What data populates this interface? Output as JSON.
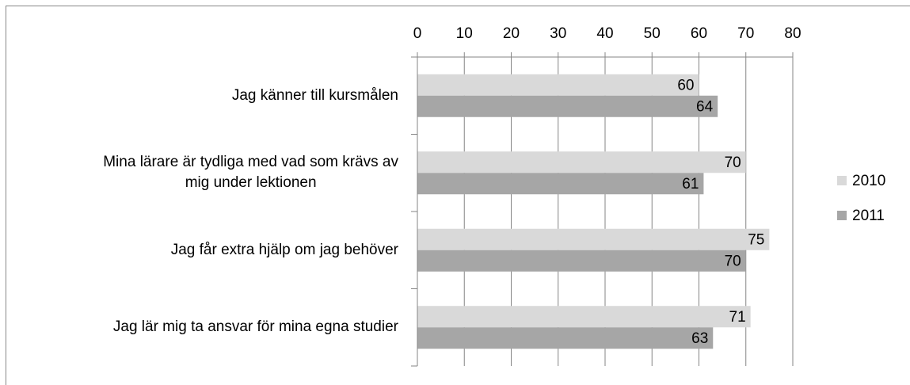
{
  "chart_data": {
    "type": "bar",
    "orientation": "horizontal",
    "categories": [
      "Jag känner till kursmålen",
      "Mina lärare är tydliga med vad som krävs av\nmig under lektionen",
      "Jag får extra hjälp om jag behöver",
      "Jag lär mig ta ansvar för mina egna studier"
    ],
    "series": [
      {
        "name": "2010",
        "color": "#d9d9d9",
        "values": [
          60,
          70,
          75,
          71
        ]
      },
      {
        "name": "2011",
        "color": "#a6a6a6",
        "values": [
          64,
          61,
          70,
          63
        ]
      }
    ],
    "xlim": [
      0,
      80
    ],
    "xticks": [
      0,
      10,
      20,
      30,
      40,
      50,
      60,
      70,
      80
    ],
    "grid": true,
    "legend": "right"
  }
}
